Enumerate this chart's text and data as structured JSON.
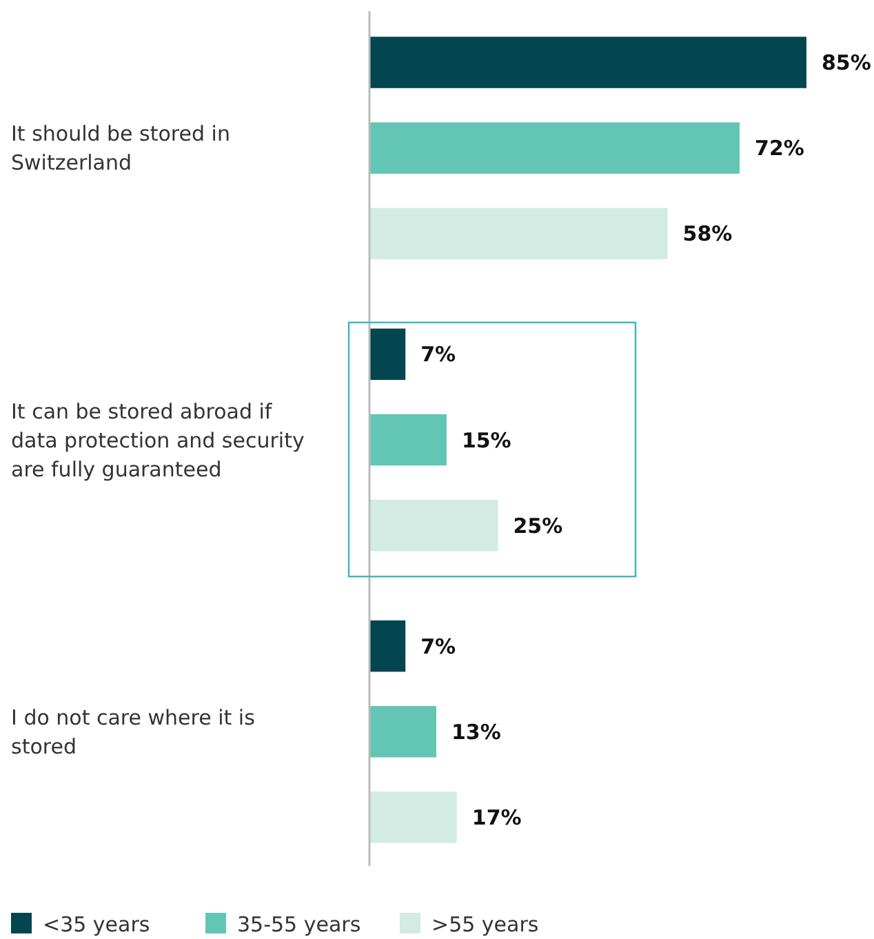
{
  "chart_data": {
    "type": "bar",
    "orientation": "horizontal",
    "legend": "bottom",
    "categories": [
      "It should be stored in Switzerland",
      "It can be stored abroad if data protection and security are fully guaranteed",
      "I do not care where it is stored"
    ],
    "series": [
      {
        "name": "<35 years",
        "color": "#03464f",
        "values": [
          85,
          7,
          7
        ],
        "value_labels": [
          "85%",
          "7%",
          "7%"
        ]
      },
      {
        "name": "35-55 years",
        "color": "#63c5b4",
        "values": [
          72,
          15,
          13
        ],
        "value_labels": [
          "72%",
          "15%",
          "13%"
        ]
      },
      {
        "name": ">55 years",
        "color": "#d2ebe3",
        "values": [
          58,
          25,
          17
        ],
        "value_labels": [
          "58%",
          "25%",
          "17%"
        ]
      }
    ]
  }
}
